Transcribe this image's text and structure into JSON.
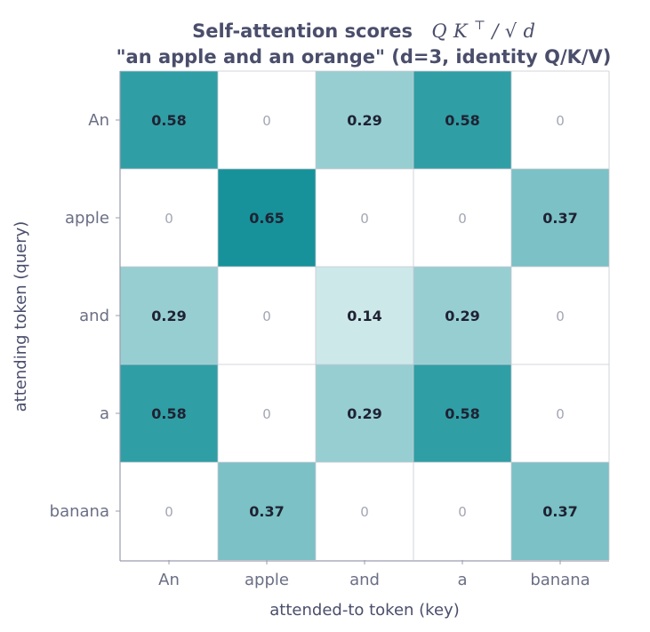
{
  "chart_data": {
    "type": "heatmap",
    "title_line1": "Self-attention scores",
    "title_formula": {
      "q": "Q",
      "k": "K",
      "sup": "⊤",
      "slash": "/",
      "sqrt": "√",
      "d": "d"
    },
    "title_line2": "\"an apple and an orange\"  (d=3, identity Q/K/V)",
    "xlabel": "attended-to token (key)",
    "ylabel": "attending token (query)",
    "x_categories": [
      "An",
      "apple",
      "and",
      "a",
      "banana"
    ],
    "y_categories": [
      "An",
      "apple",
      "and",
      "a",
      "banana"
    ],
    "value_labels": [
      [
        "0.58",
        "0",
        "0.29",
        "0.58",
        "0"
      ],
      [
        "0",
        "0.65",
        "0",
        "0",
        "0.37"
      ],
      [
        "0.29",
        "0",
        "0.14",
        "0.29",
        "0"
      ],
      [
        "0.58",
        "0",
        "0.29",
        "0.58",
        "0"
      ],
      [
        "0",
        "0.37",
        "0",
        "0",
        "0.37"
      ]
    ],
    "values": [
      [
        0.58,
        0,
        0.29,
        0.58,
        0
      ],
      [
        0,
        0.65,
        0,
        0,
        0.37
      ],
      [
        0.29,
        0,
        0.14,
        0.29,
        0
      ],
      [
        0.58,
        0,
        0.29,
        0.58,
        0
      ],
      [
        0,
        0.37,
        0,
        0,
        0.37
      ]
    ],
    "vmin": 0,
    "vmax": 0.65,
    "colors": {
      "high": "#17929a",
      "low": "#ffffff",
      "grid": "#c8c9d2",
      "frame": "#9a9cae"
    }
  }
}
